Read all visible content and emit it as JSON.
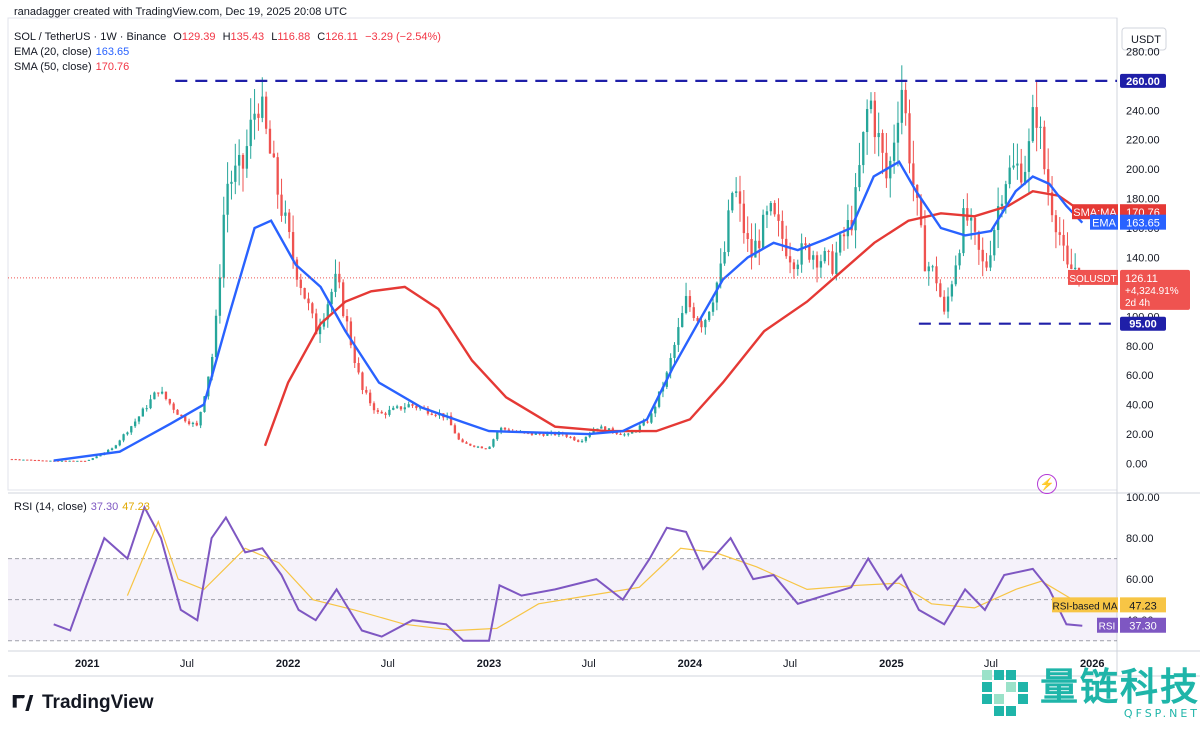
{
  "header": {
    "credit": "ranadagger created with TradingView.com, Dec 19, 2025 20:08 UTC",
    "symbol": "SOL / TetherUS · 1W · Binance",
    "o_label": "O",
    "o": "129.39",
    "h_label": "H",
    "h": "135.43",
    "l_label": "L",
    "l": "116.88",
    "c_label": "C",
    "c": "126.11",
    "change": "−3.29 (−2.54%)",
    "ema_label": "EMA (20, close)",
    "ema_value": "163.65",
    "sma_label": "SMA (50, close)",
    "sma_value": "170.76",
    "rsi_label": "RSI (14, close)",
    "rsi_value": "37.30",
    "rsi_ma_value": "47.23"
  },
  "colors": {
    "up": "#26a69a",
    "down": "#ef5350",
    "ema": "#2962ff",
    "sma": "#e53935",
    "rsi": "#7e57c2",
    "rsi_ma": "#f7c545",
    "level_line": "#1f1fa8",
    "price_line": "#ef5350"
  },
  "chart_data": [
    {
      "type": "candlestick",
      "title": "SOL / TetherUS · 1W · Binance",
      "ylabel": "USDT",
      "ylim": [
        -18,
        300
      ],
      "y_ticks": [
        "0.00",
        "20.00",
        "40.00",
        "60.00",
        "80.00",
        "100.00",
        "120.00",
        "140.00",
        "160.00",
        "180.00",
        "200.00",
        "220.00",
        "240.00",
        "260.00",
        "280.00"
      ],
      "x_ticks": [
        "2021",
        "Jul",
        "2022",
        "Jul",
        "2023",
        "Jul",
        "2024",
        "Jul",
        "2025",
        "Jul",
        "2026"
      ],
      "x_range": [
        "2020-08-10",
        "2026-02-15"
      ],
      "price_anchors": [
        [
          "2020-08-17",
          3
        ],
        [
          "2020-11-01",
          1.8
        ],
        [
          "2021-01-01",
          1.8
        ],
        [
          "2021-02-15",
          10
        ],
        [
          "2021-04-01",
          30
        ],
        [
          "2021-05-10",
          50
        ],
        [
          "2021-06-20",
          32
        ],
        [
          "2021-07-20",
          25
        ],
        [
          "2021-08-20",
          80
        ],
        [
          "2021-09-10",
          190
        ],
        [
          "2021-10-10",
          200
        ],
        [
          "2021-11-07",
          250
        ],
        [
          "2021-12-10",
          190
        ],
        [
          "2022-01-10",
          140
        ],
        [
          "2022-02-20",
          90
        ],
        [
          "2022-03-30",
          125
        ],
        [
          "2022-05-15",
          50
        ],
        [
          "2022-06-15",
          33
        ],
        [
          "2022-08-10",
          40
        ],
        [
          "2022-10-15",
          32
        ],
        [
          "2022-11-10",
          14
        ],
        [
          "2022-12-30",
          10
        ],
        [
          "2023-01-20",
          24
        ],
        [
          "2023-03-10",
          20
        ],
        [
          "2023-05-15",
          20
        ],
        [
          "2023-06-15",
          15
        ],
        [
          "2023-07-15",
          25
        ],
        [
          "2023-09-10",
          19
        ],
        [
          "2023-10-20",
          30
        ],
        [
          "2023-11-20",
          60
        ],
        [
          "2023-12-25",
          110
        ],
        [
          "2024-01-25",
          95
        ],
        [
          "2024-03-01",
          135
        ],
        [
          "2024-03-20",
          190
        ],
        [
          "2024-04-20",
          140
        ],
        [
          "2024-05-25",
          170
        ],
        [
          "2024-07-05",
          140
        ],
        [
          "2024-08-05",
          145
        ],
        [
          "2024-09-15",
          135
        ],
        [
          "2024-10-25",
          170
        ],
        [
          "2024-11-22",
          250
        ],
        [
          "2024-12-25",
          190
        ],
        [
          "2025-01-19",
          260
        ],
        [
          "2025-02-10",
          190
        ],
        [
          "2025-03-01",
          140
        ],
        [
          "2025-03-25",
          125
        ],
        [
          "2025-04-07",
          100
        ],
        [
          "2025-05-15",
          170
        ],
        [
          "2025-06-20",
          130
        ],
        [
          "2025-07-25",
          195
        ],
        [
          "2025-09-05",
          205
        ],
        [
          "2025-09-20",
          245
        ],
        [
          "2025-10-10",
          190
        ],
        [
          "2025-11-01",
          160
        ],
        [
          "2025-11-15",
          130
        ],
        [
          "2025-12-07",
          135
        ],
        [
          "2025-12-14",
          126
        ]
      ],
      "moving_averages": [
        {
          "name": "EMA (20, close)",
          "value": 163.65,
          "tag": "EMA",
          "points": [
            [
              "2020-11-01",
              2
            ],
            [
              "2021-03-01",
              8
            ],
            [
              "2021-06-01",
              27
            ],
            [
              "2021-08-01",
              40
            ],
            [
              "2021-09-15",
              100
            ],
            [
              "2021-11-01",
              160
            ],
            [
              "2021-12-01",
              165
            ],
            [
              "2022-01-15",
              135
            ],
            [
              "2022-03-01",
              120
            ],
            [
              "2022-04-15",
              90
            ],
            [
              "2022-06-15",
              55
            ],
            [
              "2022-09-01",
              38
            ],
            [
              "2022-11-15",
              28
            ],
            [
              "2023-01-01",
              22
            ],
            [
              "2023-04-01",
              21
            ],
            [
              "2023-07-01",
              20
            ],
            [
              "2023-09-01",
              22
            ],
            [
              "2023-10-15",
              30
            ],
            [
              "2023-12-01",
              65
            ],
            [
              "2024-01-15",
              95
            ],
            [
              "2024-03-01",
              125
            ],
            [
              "2024-04-15",
              140
            ],
            [
              "2024-06-01",
              150
            ],
            [
              "2024-07-15",
              145
            ],
            [
              "2024-09-01",
              152
            ],
            [
              "2024-10-20",
              160
            ],
            [
              "2024-11-30",
              195
            ],
            [
              "2025-01-15",
              205
            ],
            [
              "2025-02-15",
              185
            ],
            [
              "2025-04-01",
              160
            ],
            [
              "2025-05-15",
              155
            ],
            [
              "2025-07-01",
              158
            ],
            [
              "2025-08-15",
              185
            ],
            [
              "2025-09-15",
              195
            ],
            [
              "2025-10-15",
              190
            ],
            [
              "2025-11-15",
              175
            ],
            [
              "2025-12-14",
              163.65
            ]
          ]
        },
        {
          "name": "SMA (50, close)",
          "value": 170.76,
          "tag": "SMA:MA",
          "points": [
            [
              "2021-11-20",
              12
            ],
            [
              "2022-01-01",
              55
            ],
            [
              "2022-03-01",
              95
            ],
            [
              "2022-04-15",
              110
            ],
            [
              "2022-06-01",
              117
            ],
            [
              "2022-08-01",
              120
            ],
            [
              "2022-10-01",
              105
            ],
            [
              "2022-12-01",
              70
            ],
            [
              "2023-02-01",
              45
            ],
            [
              "2023-05-01",
              25
            ],
            [
              "2023-08-01",
              22
            ],
            [
              "2023-11-01",
              22
            ],
            [
              "2024-01-01",
              30
            ],
            [
              "2024-03-01",
              55
            ],
            [
              "2024-05-15",
              90
            ],
            [
              "2024-08-01",
              110
            ],
            [
              "2024-10-01",
              130
            ],
            [
              "2024-12-01",
              150
            ],
            [
              "2025-02-01",
              165
            ],
            [
              "2025-04-01",
              170
            ],
            [
              "2025-06-01",
              168
            ],
            [
              "2025-08-01",
              175
            ],
            [
              "2025-09-15",
              185
            ],
            [
              "2025-11-01",
              182
            ],
            [
              "2025-12-14",
              170.76
            ]
          ]
        }
      ],
      "levels": [
        {
          "value": 260,
          "label": "260.00"
        },
        {
          "value": 95,
          "label": "95.00"
        }
      ],
      "last_price": {
        "label": "SOLUSDT",
        "value": "126.11",
        "change": "+4,324.91%",
        "countdown": "2d 4h"
      }
    },
    {
      "type": "line",
      "title": "RSI (14, close)",
      "ylim": [
        25,
        100
      ],
      "y_ticks": [
        "40.00",
        "60.00",
        "80.00",
        "100.00"
      ],
      "band": [
        30,
        70
      ],
      "series": [
        {
          "name": "RSI",
          "value": "37.30",
          "points": [
            [
              "2020-11-01",
              38
            ],
            [
              "2020-12-01",
              35
            ],
            [
              "2021-01-01",
              58
            ],
            [
              "2021-02-01",
              80
            ],
            [
              "2021-03-15",
              70
            ],
            [
              "2021-04-15",
              95
            ],
            [
              "2021-05-15",
              80
            ],
            [
              "2021-06-20",
              45
            ],
            [
              "2021-07-20",
              40
            ],
            [
              "2021-08-15",
              80
            ],
            [
              "2021-09-10",
              90
            ],
            [
              "2021-10-15",
              73
            ],
            [
              "2021-11-15",
              75
            ],
            [
              "2021-12-20",
              62
            ],
            [
              "2022-01-20",
              45
            ],
            [
              "2022-02-20",
              40
            ],
            [
              "2022-03-30",
              55
            ],
            [
              "2022-05-15",
              35
            ],
            [
              "2022-06-20",
              32
            ],
            [
              "2022-08-15",
              40
            ],
            [
              "2022-10-15",
              38
            ],
            [
              "2022-11-15",
              30
            ],
            [
              "2023-01-01",
              30
            ],
            [
              "2023-01-20",
              57
            ],
            [
              "2023-03-01",
              52
            ],
            [
              "2023-05-01",
              55
            ],
            [
              "2023-07-15",
              60
            ],
            [
              "2023-09-01",
              50
            ],
            [
              "2023-10-20",
              70
            ],
            [
              "2023-11-20",
              85
            ],
            [
              "2023-12-25",
              83
            ],
            [
              "2024-01-25",
              65
            ],
            [
              "2024-03-15",
              80
            ],
            [
              "2024-04-25",
              60
            ],
            [
              "2024-06-01",
              62
            ],
            [
              "2024-07-15",
              48
            ],
            [
              "2024-09-01",
              52
            ],
            [
              "2024-10-20",
              56
            ],
            [
              "2024-11-20",
              70
            ],
            [
              "2024-12-25",
              55
            ],
            [
              "2025-01-19",
              62
            ],
            [
              "2025-02-20",
              45
            ],
            [
              "2025-04-07",
              38
            ],
            [
              "2025-05-15",
              55
            ],
            [
              "2025-06-20",
              45
            ],
            [
              "2025-07-25",
              62
            ],
            [
              "2025-09-15",
              65
            ],
            [
              "2025-10-15",
              55
            ],
            [
              "2025-11-15",
              38
            ],
            [
              "2025-12-14",
              37.3
            ]
          ]
        },
        {
          "name": "RSI-based MA",
          "value": "47.23",
          "points": [
            [
              "2021-03-15",
              52
            ],
            [
              "2021-05-10",
              88
            ],
            [
              "2021-06-15",
              60
            ],
            [
              "2021-08-01",
              55
            ],
            [
              "2021-10-15",
              75
            ],
            [
              "2021-12-15",
              68
            ],
            [
              "2022-02-15",
              50
            ],
            [
              "2022-05-01",
              45
            ],
            [
              "2022-08-01",
              38
            ],
            [
              "2022-11-01",
              35
            ],
            [
              "2023-01-15",
              36
            ],
            [
              "2023-04-01",
              48
            ],
            [
              "2023-07-01",
              52
            ],
            [
              "2023-10-01",
              56
            ],
            [
              "2023-12-15",
              75
            ],
            [
              "2024-02-15",
              73
            ],
            [
              "2024-05-01",
              66
            ],
            [
              "2024-08-01",
              55
            ],
            [
              "2024-11-01",
              57
            ],
            [
              "2025-01-15",
              58
            ],
            [
              "2025-03-15",
              48
            ],
            [
              "2025-06-01",
              46
            ],
            [
              "2025-08-15",
              55
            ],
            [
              "2025-10-01",
              59
            ],
            [
              "2025-12-14",
              47.23
            ]
          ]
        }
      ]
    }
  ],
  "watermark": {
    "brand": "TradingView",
    "site_title": "量链科技",
    "site_url": "QFSP.NET"
  }
}
